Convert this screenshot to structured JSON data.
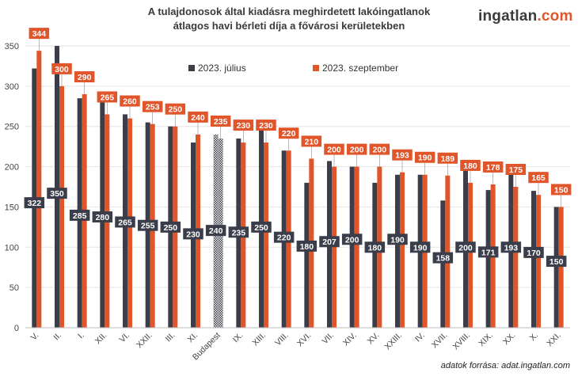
{
  "header": {
    "title_line1": "A tulajdonosok által kiadásra meghirdetett lakóingatlanok",
    "title_line2": "átlagos havi bérleti díja a fővárosi kerületekben",
    "logo_part1": "ingatlan",
    "logo_part2": ".com"
  },
  "footer": {
    "source": "adatok forrása: adat.ingatlan.com"
  },
  "colors": {
    "july": "#3b3e4a",
    "september": "#e0552a",
    "budapest": "#3b3e4a",
    "grid": "#e3e3e3"
  },
  "chart_data": {
    "type": "bar",
    "ylim": [
      0,
      350
    ],
    "yticks": [
      0,
      50,
      100,
      150,
      200,
      250,
      300,
      350
    ],
    "grid": true,
    "legend_position": "top-center",
    "categories": [
      "V.",
      "II.",
      "I.",
      "XII.",
      "VI.",
      "XXII.",
      "III.",
      "XI.",
      "Budapest",
      "IX.",
      "XIII.",
      "VIII.",
      "XVI.",
      "VII.",
      "XIV.",
      "XV.",
      "XXIII.",
      "IV.",
      "XVII.",
      "XVIII.",
      "XIX.",
      "XX.",
      "X.",
      "XXI."
    ],
    "series": [
      {
        "name": "2023. július",
        "values": [
          322,
          350,
          285,
          280,
          265,
          255,
          250,
          230,
          240,
          235,
          250,
          220,
          180,
          207,
          200,
          180,
          190,
          190,
          158,
          200,
          171,
          193,
          170,
          150
        ]
      },
      {
        "name": "2023. szeptember",
        "values": [
          344,
          300,
          290,
          265,
          260,
          253,
          250,
          240,
          235,
          230,
          230,
          220,
          210,
          200,
          200,
          200,
          193,
          190,
          189,
          180,
          178,
          175,
          165,
          150
        ]
      }
    ]
  }
}
